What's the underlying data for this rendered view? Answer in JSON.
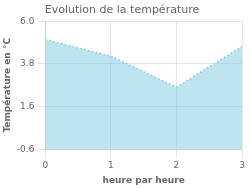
{
  "chart_data": {
    "type": "area",
    "title": "Evolution de la température",
    "xlabel": "heure par heure",
    "ylabel": "Température en °C",
    "x": [
      0,
      1,
      2,
      3
    ],
    "series": [
      {
        "values": [
          5.05,
          4.2,
          2.6,
          4.7
        ],
        "color": "#7dcce0",
        "line_style": "dotted"
      }
    ],
    "xlim": [
      0,
      3
    ],
    "xticks": [
      0,
      1,
      2,
      3
    ],
    "ylim": [
      -0.6,
      6.0
    ],
    "yticks": [
      -0.6,
      1.6,
      3.8,
      {
        "value": 6.0,
        "label": "6.0"
      }
    ],
    "grid": true
  }
}
